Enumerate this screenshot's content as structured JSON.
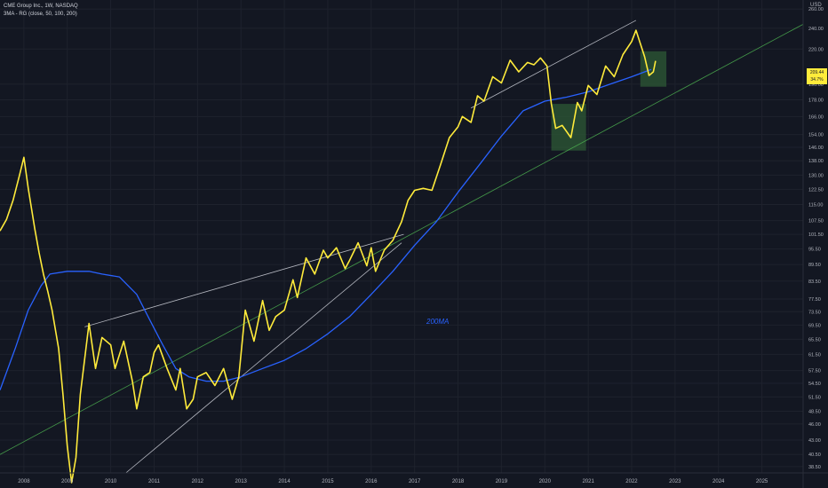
{
  "header": {
    "title": "CME Group Inc., 1W, NASDAQ",
    "indicator": "3MA - RG (close, 50, 100, 200)",
    "currency": "USD"
  },
  "price_tag": {
    "price": "209.44",
    "change": "34.7%"
  },
  "annotation": {
    "ma_label": "200MA"
  },
  "colors": {
    "background": "#131722",
    "price_line": "#ffeb3b",
    "ma200": "#2962ff",
    "trendline_green": "#4caf50",
    "trendline_white": "#d1d4dc",
    "highlight_box": "#2e5a35",
    "axis_text": "#b2b5be"
  },
  "chart_data": {
    "type": "line",
    "y_scale": "log",
    "y_ticks": [
      "260.00",
      "240.00",
      "220.00",
      "209.44",
      "190.00",
      "178.00",
      "166.00",
      "154.00",
      "146.00",
      "138.00",
      "130.00",
      "122.50",
      "115.00",
      "107.50",
      "101.50",
      "95.50",
      "89.50",
      "83.50",
      "77.50",
      "73.50",
      "69.50",
      "65.50",
      "61.50",
      "57.50",
      "54.50",
      "51.50",
      "48.50",
      "46.00",
      "43.00",
      "40.50",
      "38.50"
    ],
    "x_ticks": [
      "2008",
      "2009",
      "2010",
      "2011",
      "2012",
      "2013",
      "2014",
      "2015",
      "2016",
      "2017",
      "2018",
      "2019",
      "2020",
      "2021",
      "2022",
      "2023",
      "2024",
      "2025"
    ],
    "xlim": [
      2007.45,
      2025.95
    ],
    "ylim": [
      37.5,
      270
    ],
    "series": [
      {
        "key": "price",
        "x": [
          2007.45,
          2007.6,
          2007.75,
          2007.9,
          2008.0,
          2008.1,
          2008.25,
          2008.35,
          2008.45,
          2008.55,
          2008.65,
          2008.8,
          2008.9,
          2009.0,
          2009.1,
          2009.2,
          2009.3,
          2009.5,
          2009.65,
          2009.8,
          2010.0,
          2010.1,
          2010.3,
          2010.5,
          2010.6,
          2010.75,
          2010.9,
          2011.0,
          2011.1,
          2011.3,
          2011.5,
          2011.6,
          2011.75,
          2011.9,
          2012.0,
          2012.2,
          2012.4,
          2012.6,
          2012.8,
          2012.95,
          2013.1,
          2013.3,
          2013.5,
          2013.65,
          2013.8,
          2014.0,
          2014.2,
          2014.3,
          2014.5,
          2014.7,
          2014.9,
          2015.0,
          2015.2,
          2015.4,
          2015.5,
          2015.7,
          2015.9,
          2016.0,
          2016.1,
          2016.3,
          2016.5,
          2016.7,
          2016.85,
          2017.0,
          2017.2,
          2017.4,
          2017.6,
          2017.8,
          2018.0,
          2018.1,
          2018.3,
          2018.45,
          2018.6,
          2018.8,
          2019.0,
          2019.2,
          2019.4,
          2019.6,
          2019.75,
          2019.9,
          2020.05,
          2020.15,
          2020.25,
          2020.4,
          2020.6,
          2020.75,
          2020.85,
          2021.0,
          2021.2,
          2021.4,
          2021.6,
          2021.8,
          2022.0,
          2022.1,
          2022.2,
          2022.3,
          2022.4,
          2022.5,
          2022.55
        ],
        "values": [
          103,
          108,
          117,
          130,
          140,
          123,
          104,
          94,
          86,
          80,
          74,
          63,
          52,
          42,
          36,
          40,
          52,
          70,
          58,
          66,
          64,
          58,
          65,
          55,
          49,
          56,
          57,
          62,
          64,
          58,
          53,
          58,
          49,
          51,
          56,
          57,
          54,
          58,
          51,
          56,
          74,
          65,
          77,
          68,
          72,
          74,
          84,
          78,
          92,
          86,
          95,
          92,
          96,
          88,
          91,
          98,
          89,
          96,
          87,
          95,
          99,
          107,
          117,
          122,
          123,
          122,
          136,
          152,
          159,
          166,
          162,
          181,
          177,
          196,
          191,
          210,
          200,
          208,
          206,
          212,
          205,
          175,
          158,
          160,
          152,
          176,
          170,
          189,
          182,
          205,
          196,
          215,
          227,
          238,
          225,
          213,
          197,
          200,
          209.4
        ]
      },
      {
        "key": "ma200",
        "x": [
          2007.45,
          2007.8,
          2008.1,
          2008.4,
          2008.6,
          2009.0,
          2009.5,
          2009.8,
          2010.2,
          2010.6,
          2010.9,
          2011.2,
          2011.5,
          2011.8,
          2012.2,
          2012.6,
          2013.0,
          2013.5,
          2014.0,
          2014.5,
          2015.0,
          2015.5,
          2016.0,
          2016.5,
          2017.0,
          2017.5,
          2018.0,
          2018.5,
          2019.0,
          2019.5,
          2020.0,
          2020.5,
          2021.0,
          2021.5,
          2022.0,
          2022.3,
          2022.45
        ],
        "values": [
          53,
          63,
          74,
          82,
          86,
          87,
          87,
          86,
          85,
          79,
          71,
          64,
          58,
          56,
          55,
          55,
          56,
          58,
          60,
          63,
          67,
          72,
          79,
          87,
          97,
          107,
          121,
          136,
          153,
          170,
          177,
          180,
          184,
          190,
          196,
          200,
          202
        ]
      }
    ],
    "trendlines": [
      {
        "color_key": "trendline_green",
        "from": [
          2007.45,
          40.5
        ],
        "to": [
          2025.95,
          244
        ]
      },
      {
        "color_key": "trendline_white",
        "from": [
          2009.4,
          69
        ],
        "to": [
          2016.75,
          101.5
        ]
      },
      {
        "color_key": "trendline_white",
        "from": [
          2010.35,
          37.5
        ],
        "to": [
          2016.7,
          98
        ]
      },
      {
        "color_key": "trendline_white",
        "from": [
          2018.3,
          172
        ],
        "to": [
          2022.1,
          248
        ]
      }
    ],
    "highlight_boxes": [
      {
        "x": [
          2020.15,
          2020.95
        ],
        "y": [
          144,
          175
        ]
      },
      {
        "x": [
          2022.2,
          2022.8
        ],
        "y": [
          188,
          218
        ]
      }
    ]
  }
}
